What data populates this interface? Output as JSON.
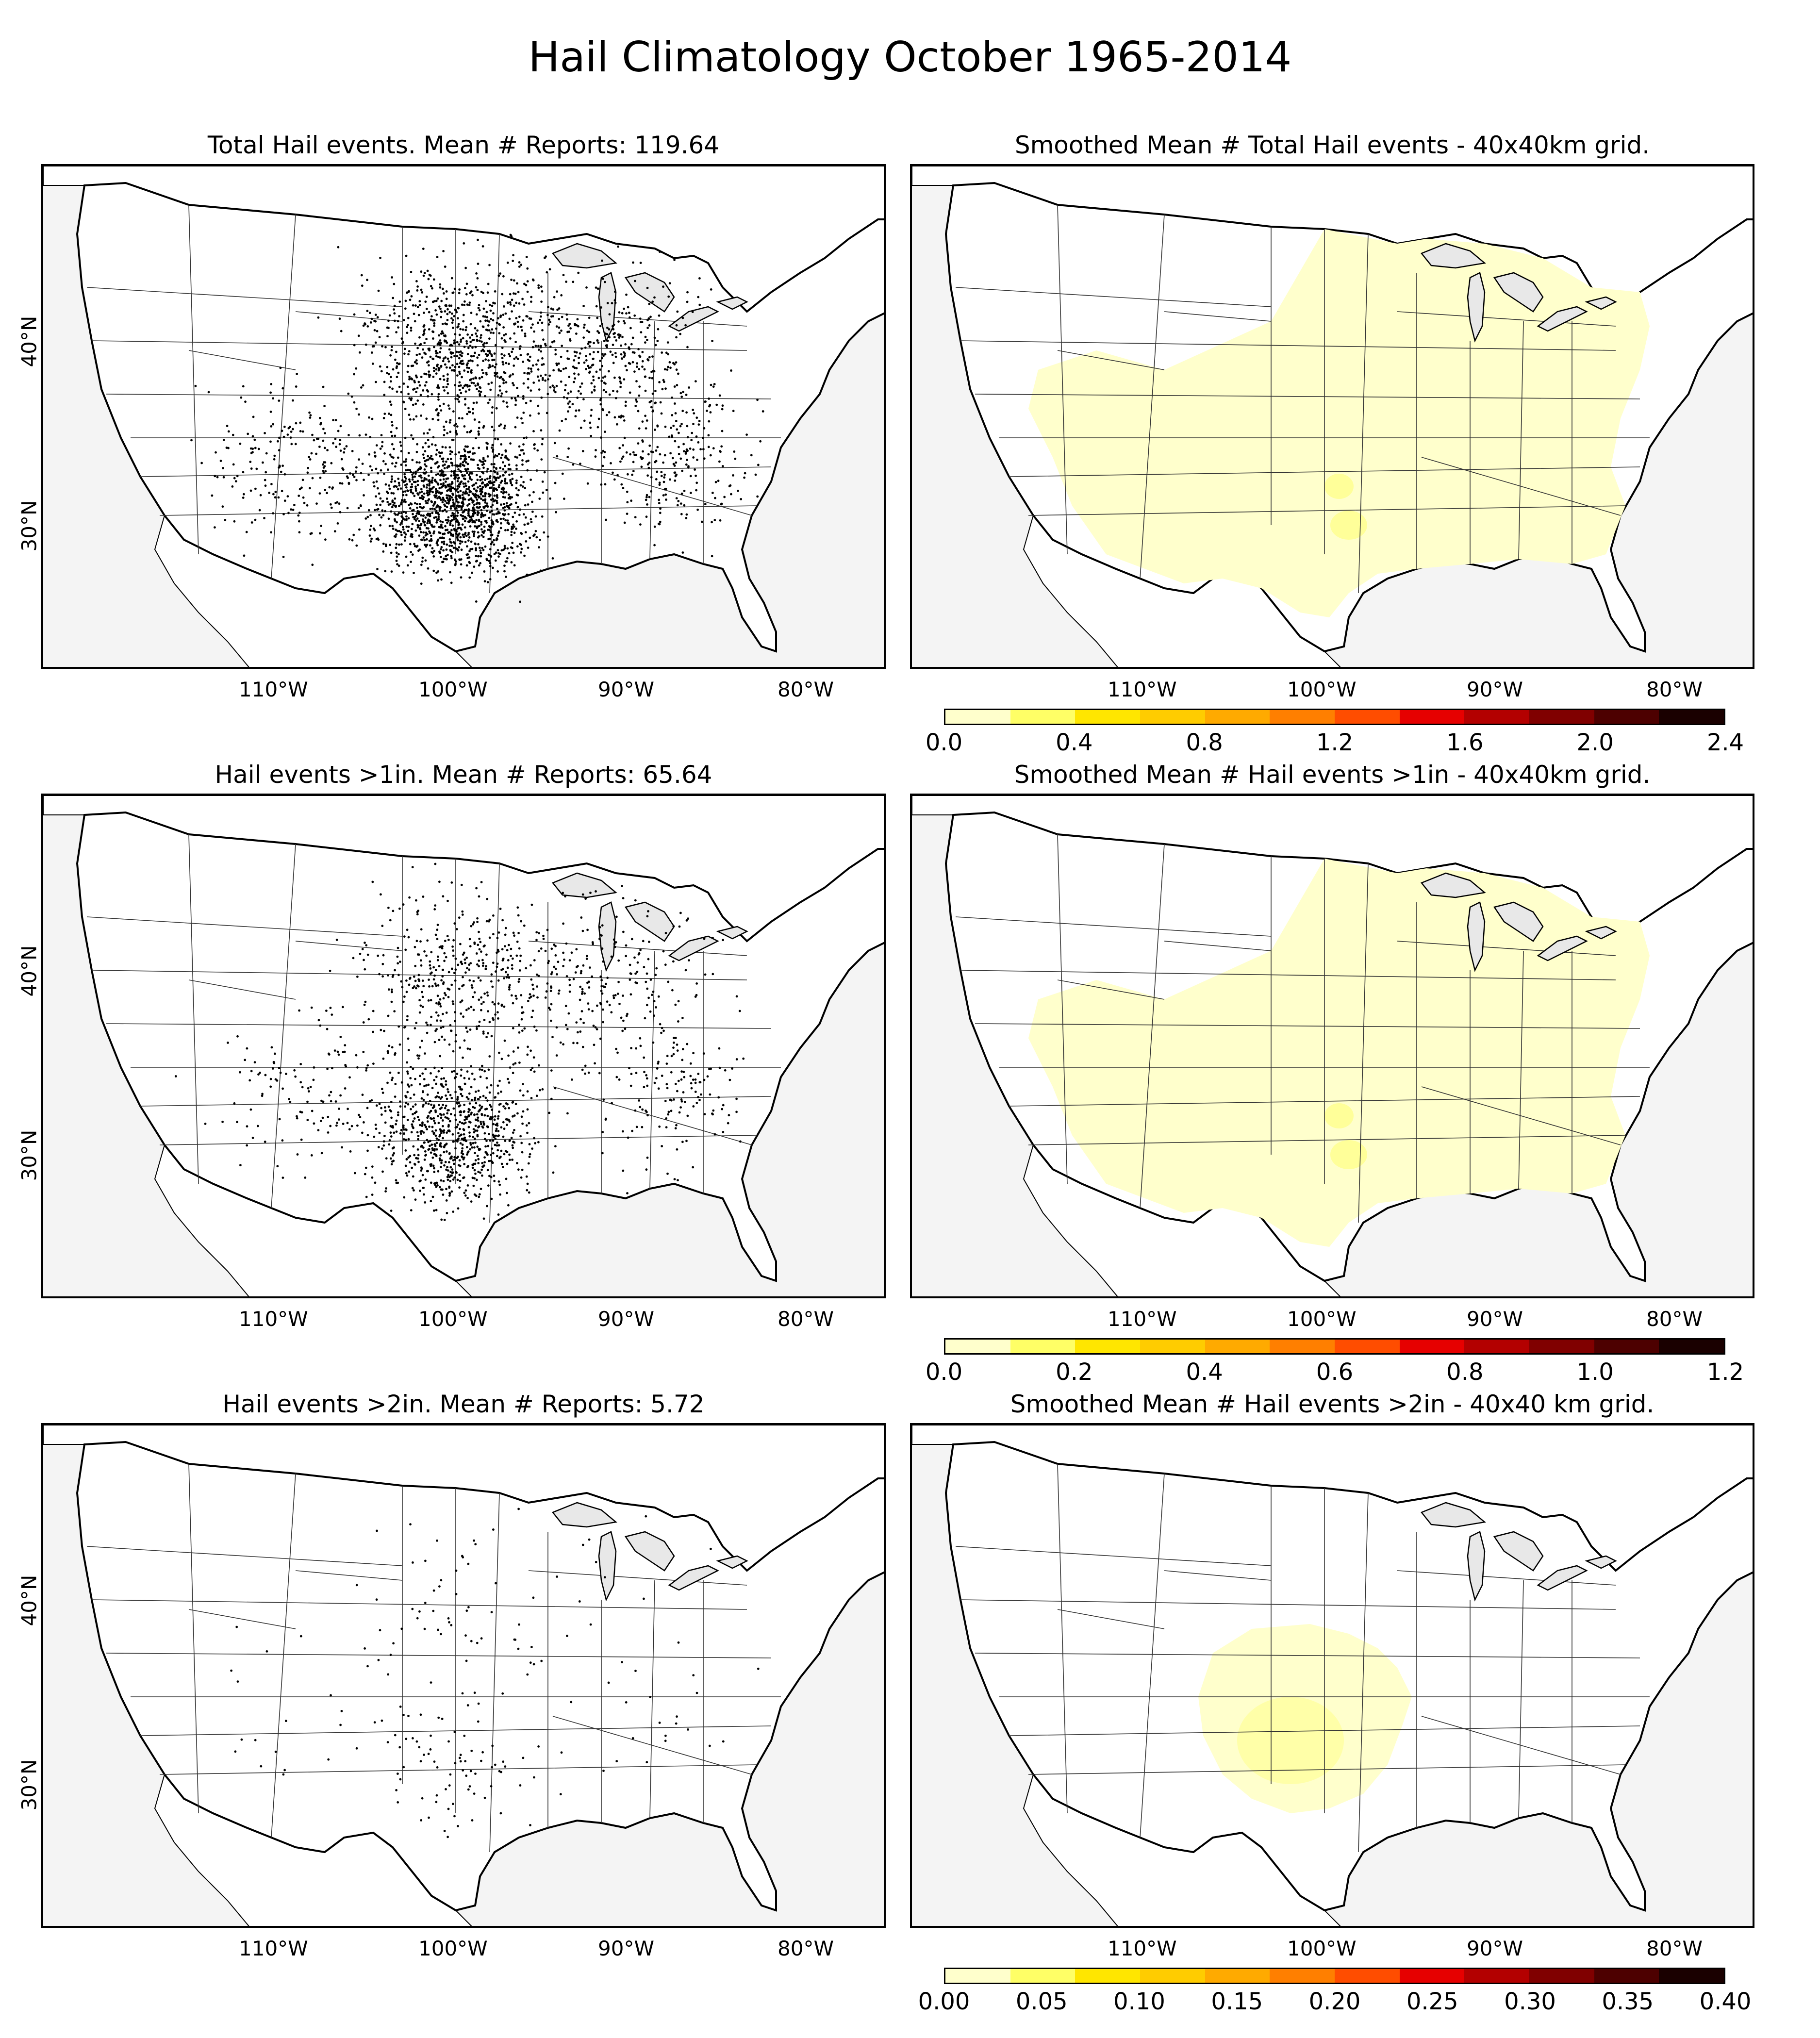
{
  "title": "Hail Climatology October 1965-2014",
  "longitude_ticks": [
    "110°W",
    "100°W",
    "90°W",
    "80°W"
  ],
  "latitude_ticks": [
    "40°N",
    "30°N"
  ],
  "rows": [
    {
      "left": {
        "title": "Total Hail events. Mean # Reports: 119.64",
        "dot_density": 1.0
      },
      "right": {
        "title": "Smoothed Mean # Total Hail events - 40x40km grid."
      },
      "colorbar": {
        "labels": [
          "0.0",
          "0.4",
          "0.8",
          "1.2",
          "1.6",
          "2.0",
          "2.4"
        ],
        "colors": [
          "#ffffcc",
          "#ffff66",
          "#ffe600",
          "#ffcc00",
          "#ffaa00",
          "#ff7f00",
          "#ff4d00",
          "#e60000",
          "#b30000",
          "#800000",
          "#4d0000",
          "#1a0000"
        ]
      }
    },
    {
      "left": {
        "title": "Hail events >1in. Mean # Reports: 65.64",
        "dot_density": 0.55
      },
      "right": {
        "title": "Smoothed Mean # Hail events >1in - 40x40km grid."
      },
      "colorbar": {
        "labels": [
          "0.0",
          "0.2",
          "0.4",
          "0.6",
          "0.8",
          "1.0",
          "1.2"
        ],
        "colors": [
          "#ffffcc",
          "#ffff66",
          "#ffe600",
          "#ffcc00",
          "#ffaa00",
          "#ff7f00",
          "#ff4d00",
          "#e60000",
          "#b30000",
          "#800000",
          "#4d0000",
          "#1a0000"
        ]
      }
    },
    {
      "left": {
        "title": "Hail events >2in. Mean # Reports: 5.72",
        "dot_density": 0.06
      },
      "right": {
        "title": "Smoothed Mean # Hail events >2in - 40x40 km grid."
      },
      "colorbar": {
        "labels": [
          "0.00",
          "0.05",
          "0.10",
          "0.15",
          "0.20",
          "0.25",
          "0.30",
          "0.35",
          "0.40"
        ],
        "colors": [
          "#ffffcc",
          "#ffff66",
          "#ffe600",
          "#ffcc00",
          "#ffaa00",
          "#ff7f00",
          "#ff4d00",
          "#e60000",
          "#b30000",
          "#800000",
          "#4d0000",
          "#1a0000"
        ]
      }
    }
  ],
  "colors": {
    "land": "#ffffff",
    "water": "#f4f4f4",
    "lakes": "#e8e8e8",
    "shade": "#ffffcc",
    "shade_strong": "#ffff99",
    "dots": "#000000"
  }
}
